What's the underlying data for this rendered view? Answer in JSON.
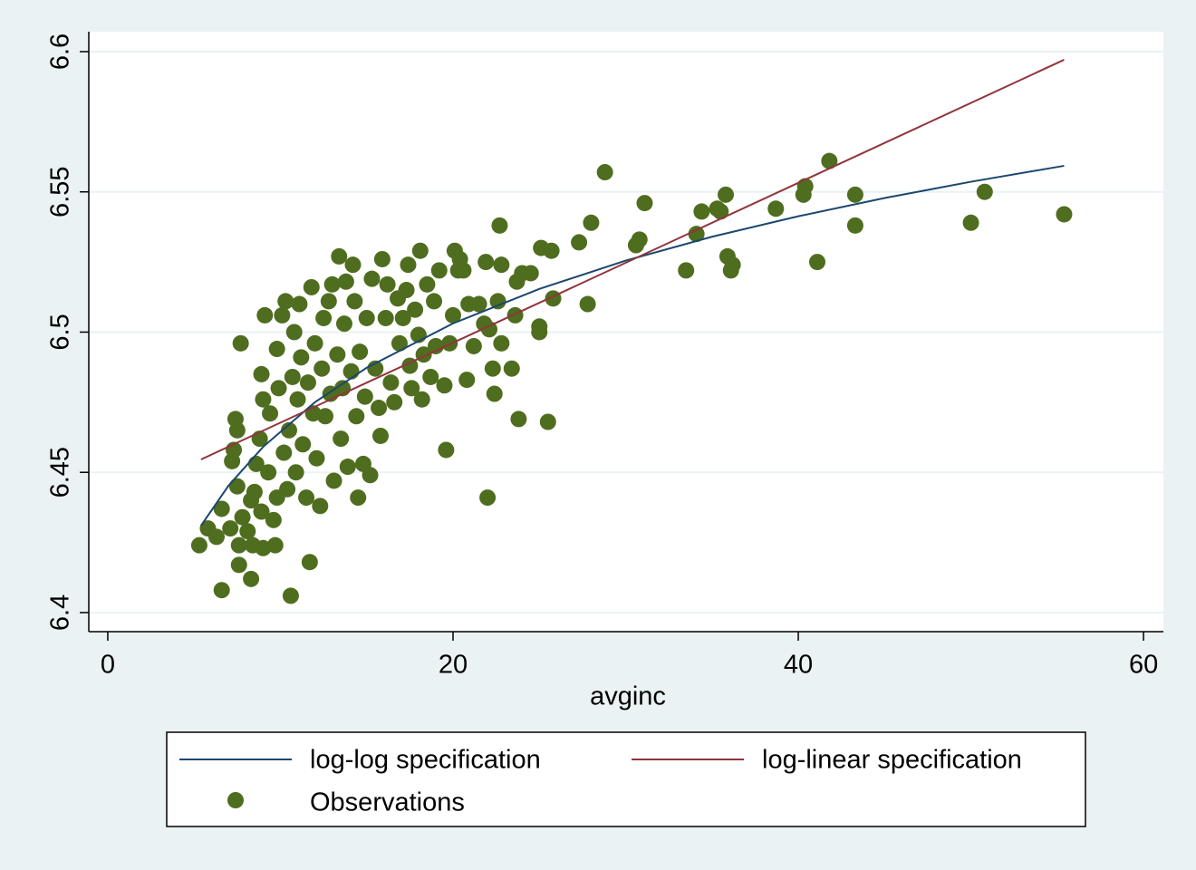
{
  "chart_data": {
    "type": "scatter",
    "x_label": "avginc",
    "xlim": [
      -1.1,
      61.15
    ],
    "ylim": [
      6.3932,
      6.6071
    ],
    "xticks": [
      0,
      20,
      40,
      60
    ],
    "yticks": [
      6.4,
      6.45,
      6.5,
      6.55,
      6.6
    ],
    "grid": true,
    "series": [
      {
        "name": "log-log specification",
        "color": "#1a476f",
        "style": "line",
        "x": [
          5.4,
          7,
          9,
          12,
          15,
          20,
          25,
          30,
          35,
          40,
          45,
          50,
          55.4
        ],
        "values": [
          6.431,
          6.4453,
          6.4591,
          6.475,
          6.4873,
          6.5031,
          6.5154,
          6.5255,
          6.534,
          6.5413,
          6.5478,
          6.5536,
          6.5593
        ]
      },
      {
        "name": "log-linear specification",
        "color": "#90353b",
        "style": "line",
        "x": [
          5.4,
          55.4
        ],
        "values": [
          6.4546,
          6.5971
        ]
      },
      {
        "name": "Observations",
        "color": "#4f6d1f",
        "style": "marker",
        "x": [
          5.3,
          5.8,
          6.3,
          6.6,
          6.6,
          7.1,
          7.2,
          7.3,
          7.4,
          7.5,
          7.5,
          7.6,
          7.6,
          7.7,
          7.8,
          8.1,
          8.3,
          8.3,
          8.4,
          8.5,
          8.6,
          8.8,
          8.9,
          8.9,
          9.0,
          9.0,
          9.1,
          9.3,
          9.4,
          9.6,
          9.7,
          9.8,
          9.8,
          9.9,
          10.1,
          10.2,
          10.3,
          10.4,
          10.5,
          10.6,
          10.7,
          10.8,
          10.9,
          11.0,
          11.1,
          11.2,
          11.3,
          11.5,
          11.6,
          11.7,
          11.8,
          11.9,
          12.0,
          12.1,
          12.3,
          12.4,
          12.5,
          12.6,
          12.8,
          12.9,
          13.0,
          13.1,
          13.3,
          13.4,
          13.5,
          13.6,
          13.7,
          13.8,
          13.9,
          14.1,
          14.2,
          14.3,
          14.4,
          14.5,
          14.6,
          14.8,
          14.9,
          15.0,
          15.2,
          15.3,
          15.5,
          15.7,
          15.8,
          15.9,
          16.1,
          16.2,
          16.4,
          16.6,
          16.8,
          16.9,
          17.1,
          17.3,
          17.4,
          17.5,
          17.6,
          17.8,
          18.0,
          18.1,
          18.2,
          18.3,
          18.5,
          18.7,
          18.9,
          19.0,
          19.2,
          19.5,
          19.6,
          19.8,
          20.0,
          20.1,
          20.3,
          20.4,
          20.6,
          20.8,
          20.9,
          21.2,
          21.5,
          21.8,
          21.9,
          22.0,
          22.1,
          22.3,
          22.4,
          22.6,
          22.7,
          22.8,
          22.8,
          23.4,
          23.6,
          23.7,
          23.8,
          24.0,
          24.5,
          25.0,
          25.0,
          25.1,
          25.5,
          25.7,
          25.8,
          27.3,
          27.8,
          28.0,
          28.8,
          30.6,
          30.8,
          31.1,
          33.5,
          34.1,
          34.4,
          35.3,
          35.5,
          35.8,
          35.9,
          36.1,
          36.2,
          38.7,
          40.3,
          40.4,
          41.1,
          41.8,
          43.3,
          43.3,
          50.0,
          50.8,
          55.4
        ],
        "values": [
          6.424,
          6.43,
          6.427,
          6.408,
          6.437,
          6.43,
          6.454,
          6.458,
          6.469,
          6.465,
          6.445,
          6.424,
          6.417,
          6.496,
          6.434,
          6.429,
          6.44,
          6.412,
          6.424,
          6.443,
          6.453,
          6.462,
          6.485,
          6.436,
          6.476,
          6.423,
          6.506,
          6.45,
          6.471,
          6.433,
          6.424,
          6.494,
          6.441,
          6.48,
          6.506,
          6.457,
          6.511,
          6.444,
          6.465,
          6.406,
          6.484,
          6.5,
          6.45,
          6.476,
          6.51,
          6.491,
          6.46,
          6.441,
          6.482,
          6.418,
          6.516,
          6.471,
          6.496,
          6.455,
          6.438,
          6.487,
          6.505,
          6.47,
          6.511,
          6.478,
          6.517,
          6.447,
          6.492,
          6.527,
          6.462,
          6.48,
          6.503,
          6.518,
          6.452,
          6.486,
          6.524,
          6.511,
          6.47,
          6.441,
          6.493,
          6.453,
          6.477,
          6.505,
          6.449,
          6.519,
          6.487,
          6.473,
          6.463,
          6.526,
          6.505,
          6.517,
          6.482,
          6.475,
          6.512,
          6.496,
          6.505,
          6.515,
          6.524,
          6.488,
          6.48,
          6.508,
          6.499,
          6.529,
          6.476,
          6.492,
          6.517,
          6.484,
          6.511,
          6.495,
          6.522,
          6.481,
          6.458,
          6.496,
          6.506,
          6.529,
          6.522,
          6.526,
          6.522,
          6.483,
          6.51,
          6.495,
          6.51,
          6.503,
          6.525,
          6.441,
          6.501,
          6.487,
          6.478,
          6.511,
          6.538,
          6.524,
          6.496,
          6.487,
          6.506,
          6.518,
          6.469,
          6.521,
          6.521,
          6.502,
          6.5,
          6.53,
          6.468,
          6.529,
          6.512,
          6.532,
          6.51,
          6.539,
          6.557,
          6.531,
          6.533,
          6.546,
          6.522,
          6.535,
          6.543,
          6.544,
          6.543,
          6.549,
          6.527,
          6.522,
          6.524,
          6.544,
          6.549,
          6.552,
          6.525,
          6.561,
          6.549,
          6.538,
          6.539,
          6.55,
          6.542
        ]
      }
    ]
  }
}
